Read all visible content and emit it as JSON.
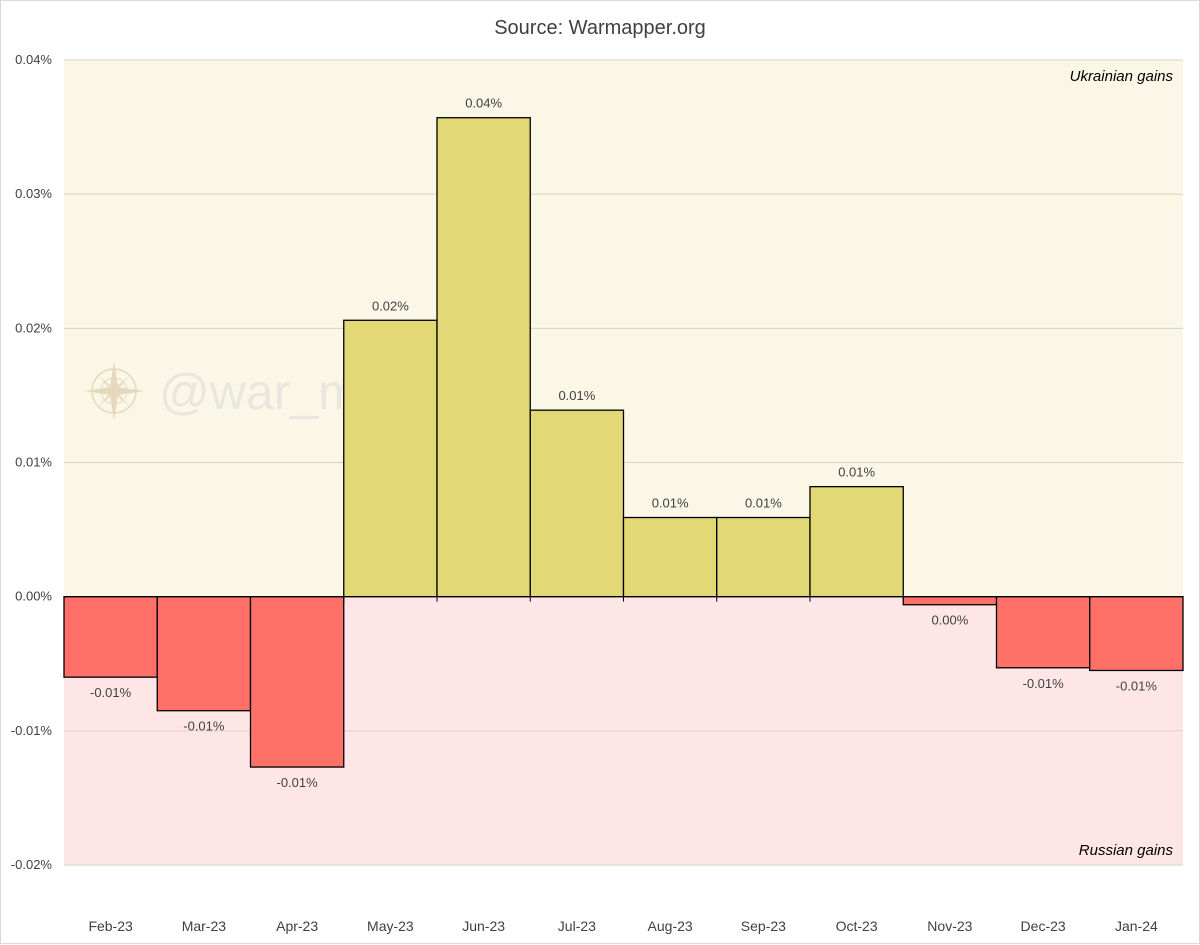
{
  "chart_data": {
    "type": "bar",
    "title": "Source: Warmapper.org",
    "xlabel": "",
    "ylabel": "",
    "categories": [
      "Feb-23",
      "Mar-23",
      "Apr-23",
      "May-23",
      "Jun-23",
      "Jul-23",
      "Aug-23",
      "Sep-23",
      "Oct-23",
      "Nov-23",
      "Dec-23",
      "Jan-24"
    ],
    "values": [
      -0.006,
      -0.0085,
      -0.0127,
      0.0206,
      0.0357,
      0.0139,
      0.0059,
      0.0059,
      0.0082,
      -0.0006,
      -0.0053,
      -0.0055
    ],
    "data_labels": [
      "-0.01%",
      "-0.01%",
      "-0.01%",
      "0.02%",
      "0.04%",
      "0.01%",
      "0.01%",
      "0.01%",
      "0.01%",
      "0.00%",
      "-0.01%",
      "-0.01%"
    ],
    "ylim": [
      -0.02,
      0.04
    ],
    "yticks": [
      0.04,
      0.03,
      0.02,
      0.01,
      0.0,
      -0.01,
      -0.02
    ],
    "ytick_labels": [
      "0.04%",
      "0.03%",
      "0.02%",
      "0.01%",
      "0.00%",
      "-0.01%",
      "-0.02%"
    ],
    "grid": true,
    "legend": "none",
    "annotations": {
      "upper_region": "Ukrainian gains",
      "lower_region": "Russian gains"
    },
    "watermark": "@war_mapper",
    "colors": {
      "positive_bar": "#e3d876",
      "negative_bar": "#ff7168",
      "upper_band": "#fbf7e7",
      "lower_band": "#ffe6e6",
      "bar_edge": "#000000",
      "grid": "#d6d3c0"
    }
  }
}
